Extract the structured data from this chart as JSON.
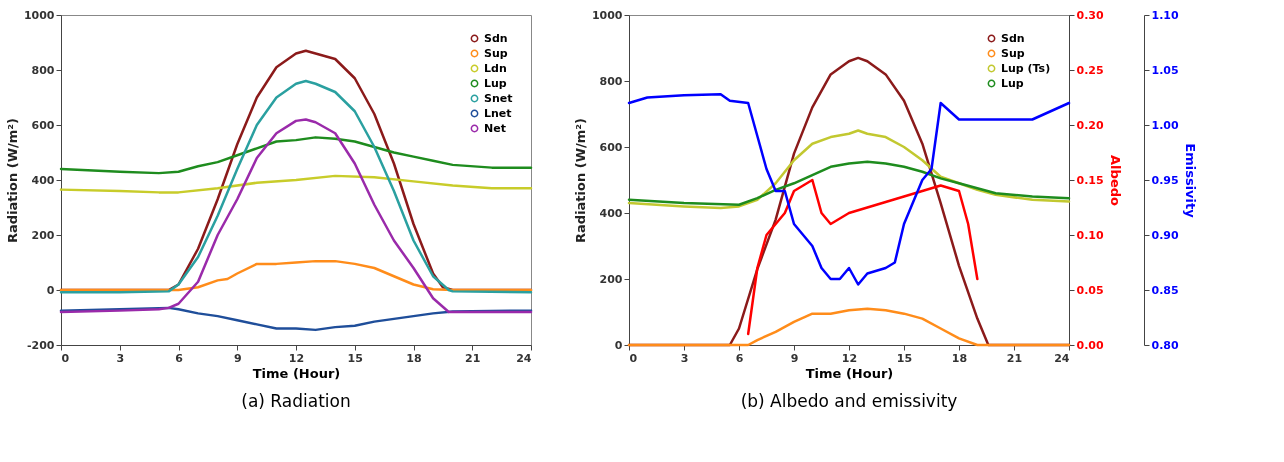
{
  "chart_data": [
    {
      "type": "line",
      "title": "(a) Radiation",
      "xlabel": "Time (Hour)",
      "ylabel": "Radiation (W/m²)",
      "xlim": [
        0,
        24
      ],
      "xticks": [
        0,
        3,
        6,
        9,
        12,
        15,
        18,
        21,
        24
      ],
      "ylim": [
        -200,
        1000
      ],
      "yticks": [
        -200,
        0,
        200,
        400,
        600,
        800,
        1000
      ],
      "grid": false,
      "legend": "top right",
      "series": [
        {
          "name": "Sdn",
          "color": "#8b1a1a",
          "x": [
            0,
            3,
            5.5,
            6,
            7,
            8,
            9,
            10,
            11,
            12,
            12.5,
            13,
            14,
            15,
            16,
            17,
            18,
            19,
            19.5,
            20,
            24
          ],
          "values": [
            0,
            0,
            0,
            20,
            150,
            330,
            530,
            700,
            810,
            860,
            870,
            860,
            840,
            770,
            640,
            460,
            240,
            60,
            10,
            0,
            0
          ]
        },
        {
          "name": "Sup",
          "color": "#ff8c1a",
          "x": [
            0,
            3,
            6,
            7,
            8,
            8.5,
            9,
            10,
            11,
            12,
            13,
            14,
            15,
            16,
            17,
            18,
            19,
            20,
            24
          ],
          "values": [
            0,
            0,
            0,
            10,
            35,
            40,
            60,
            95,
            95,
            100,
            105,
            105,
            95,
            80,
            50,
            20,
            3,
            0,
            0
          ]
        },
        {
          "name": "Ldn",
          "color": "#c8cc2a",
          "x": [
            0,
            3,
            5,
            6,
            8,
            10,
            12,
            14,
            16,
            18,
            20,
            22,
            24
          ],
          "values": [
            365,
            360,
            355,
            355,
            370,
            390,
            400,
            415,
            410,
            395,
            380,
            370,
            370
          ]
        },
        {
          "name": "Lup",
          "color": "#1e8c1e",
          "x": [
            0,
            3,
            5,
            6,
            7,
            8,
            9,
            10,
            11,
            12,
            13,
            14,
            15,
            16,
            17,
            18,
            19,
            20,
            22,
            24
          ],
          "values": [
            440,
            430,
            425,
            430,
            450,
            465,
            490,
            515,
            540,
            545,
            555,
            550,
            540,
            520,
            500,
            485,
            470,
            455,
            445,
            445
          ]
        },
        {
          "name": "Snet",
          "color": "#2aa0a0",
          "x": [
            0,
            3,
            5.5,
            6,
            7,
            8,
            9,
            10,
            11,
            12,
            12.5,
            13,
            14,
            15,
            16,
            17,
            18,
            19,
            19.8,
            20,
            24
          ],
          "values": [
            -8,
            -8,
            -5,
            20,
            120,
            270,
            440,
            600,
            700,
            750,
            760,
            750,
            720,
            650,
            520,
            360,
            180,
            50,
            0,
            -5,
            -8
          ]
        },
        {
          "name": "Lnet",
          "color": "#1f4e9a",
          "x": [
            0,
            3,
            5.5,
            6,
            7,
            8,
            9,
            10,
            11,
            12,
            13,
            14,
            15,
            16,
            17,
            18,
            19,
            20,
            24
          ],
          "values": [
            -75,
            -70,
            -65,
            -70,
            -85,
            -95,
            -110,
            -125,
            -140,
            -140,
            -145,
            -135,
            -130,
            -115,
            -105,
            -95,
            -85,
            -78,
            -75
          ]
        },
        {
          "name": "Net",
          "color": "#9a2aaa",
          "x": [
            0,
            3,
            5,
            5.5,
            6,
            7,
            8,
            9,
            10,
            11,
            12,
            12.5,
            13,
            14,
            15,
            16,
            17,
            18,
            19,
            19.8,
            24
          ],
          "values": [
            -80,
            -75,
            -70,
            -65,
            -50,
            30,
            200,
            330,
            480,
            570,
            615,
            620,
            610,
            570,
            460,
            310,
            180,
            80,
            -30,
            -80,
            -80
          ]
        }
      ]
    },
    {
      "type": "line",
      "title": "(b) Albedo and emissivity",
      "xlabel": "Time (Hour)",
      "ylabel": "Radiation (W/m²)",
      "y2label": "Albedo",
      "y3label": "Emissivity",
      "xlim": [
        0,
        24
      ],
      "xticks": [
        0,
        3,
        6,
        9,
        12,
        15,
        18,
        21,
        24
      ],
      "ylim": [
        0,
        1000
      ],
      "yticks": [
        0,
        200,
        400,
        600,
        800,
        1000
      ],
      "y2lim": [
        0,
        0.3
      ],
      "y2ticks": [
        {
          "value": 0,
          "label": "0.00"
        },
        {
          "value": 0.05,
          "label": "0.05"
        },
        {
          "value": 0.1,
          "label": "0.10"
        },
        {
          "value": 0.15,
          "label": "0.15"
        },
        {
          "value": 0.2,
          "label": "0.20"
        },
        {
          "value": 0.25,
          "label": "0.25"
        },
        {
          "value": 0.3,
          "label": "0.30"
        }
      ],
      "y3lim": [
        0.8,
        1.1
      ],
      "y3ticks": [
        {
          "value": 0.8,
          "label": "0.80"
        },
        {
          "value": 0.85,
          "label": "0.85"
        },
        {
          "value": 0.9,
          "label": "0.90"
        },
        {
          "value": 0.95,
          "label": "0.95"
        },
        {
          "value": 1.0,
          "label": "1.00"
        },
        {
          "value": 1.05,
          "label": "1.05"
        },
        {
          "value": 1.1,
          "label": "1.10"
        }
      ],
      "grid": false,
      "legend": "top right",
      "series": [
        {
          "name": "Sdn",
          "color": "#8b1a1a",
          "x": [
            0,
            3,
            5.5,
            6,
            7,
            8,
            9,
            10,
            11,
            12,
            12.5,
            13,
            14,
            15,
            16,
            17,
            18,
            19,
            19.6,
            24
          ],
          "values": [
            0,
            0,
            0,
            50,
            230,
            380,
            580,
            720,
            820,
            860,
            870,
            860,
            820,
            740,
            610,
            430,
            240,
            80,
            0,
            0
          ]
        },
        {
          "name": "Sup",
          "color": "#ff8c1a",
          "x": [
            0,
            3,
            6.5,
            7,
            8,
            9,
            10,
            11,
            12,
            13,
            14,
            15,
            16,
            17,
            18,
            19,
            24
          ],
          "values": [
            0,
            0,
            0,
            15,
            40,
            70,
            95,
            95,
            105,
            110,
            105,
            95,
            80,
            50,
            20,
            0,
            0
          ]
        },
        {
          "name": "Lup (Ts)",
          "color": "#c2c830",
          "x": [
            0,
            3,
            5,
            6,
            7,
            8,
            9,
            10,
            11,
            12,
            12.5,
            13,
            14,
            15,
            16,
            17,
            18,
            19,
            20,
            22,
            24
          ],
          "values": [
            430,
            420,
            415,
            420,
            440,
            490,
            560,
            610,
            630,
            640,
            650,
            640,
            630,
            600,
            560,
            510,
            490,
            470,
            455,
            440,
            435
          ]
        },
        {
          "name": "Lup",
          "color": "#1e8c1e",
          "x": [
            0,
            3,
            6,
            7,
            8,
            9,
            10,
            11,
            12,
            13,
            14,
            15,
            16,
            17,
            18,
            19,
            20,
            22,
            24
          ],
          "values": [
            440,
            430,
            425,
            445,
            470,
            490,
            515,
            540,
            550,
            555,
            550,
            540,
            525,
            505,
            490,
            475,
            460,
            450,
            445
          ]
        },
        {
          "color": "#ff0000",
          "axis": "y2",
          "x": [
            6.5,
            7,
            7.5,
            8,
            8.5,
            9,
            9.5,
            10,
            10.5,
            11,
            12,
            13,
            14,
            15,
            16,
            17,
            18,
            18.5,
            19
          ],
          "values": [
            0.01,
            0.07,
            0.1,
            0.11,
            0.12,
            0.14,
            0.145,
            0.15,
            0.12,
            0.11,
            0.12,
            0.125,
            0.13,
            0.135,
            0.14,
            0.145,
            0.14,
            0.11,
            0.06
          ]
        },
        {
          "color": "#0000ff",
          "axis": "y3",
          "x": [
            0,
            1,
            3,
            5,
            5.5,
            6.5,
            7,
            7.5,
            8,
            8.5,
            9,
            10,
            10.5,
            11,
            11.5,
            12,
            12.5,
            13,
            14,
            14.5,
            15,
            16,
            16.5,
            17,
            18,
            20,
            22,
            24
          ],
          "values": [
            1.02,
            1.025,
            1.027,
            1.028,
            1.022,
            1.02,
            0.99,
            0.96,
            0.94,
            0.94,
            0.91,
            0.89,
            0.87,
            0.86,
            0.86,
            0.87,
            0.855,
            0.865,
            0.87,
            0.875,
            0.91,
            0.95,
            0.96,
            1.02,
            1.005,
            1.005,
            1.005,
            1.02
          ]
        }
      ]
    }
  ]
}
